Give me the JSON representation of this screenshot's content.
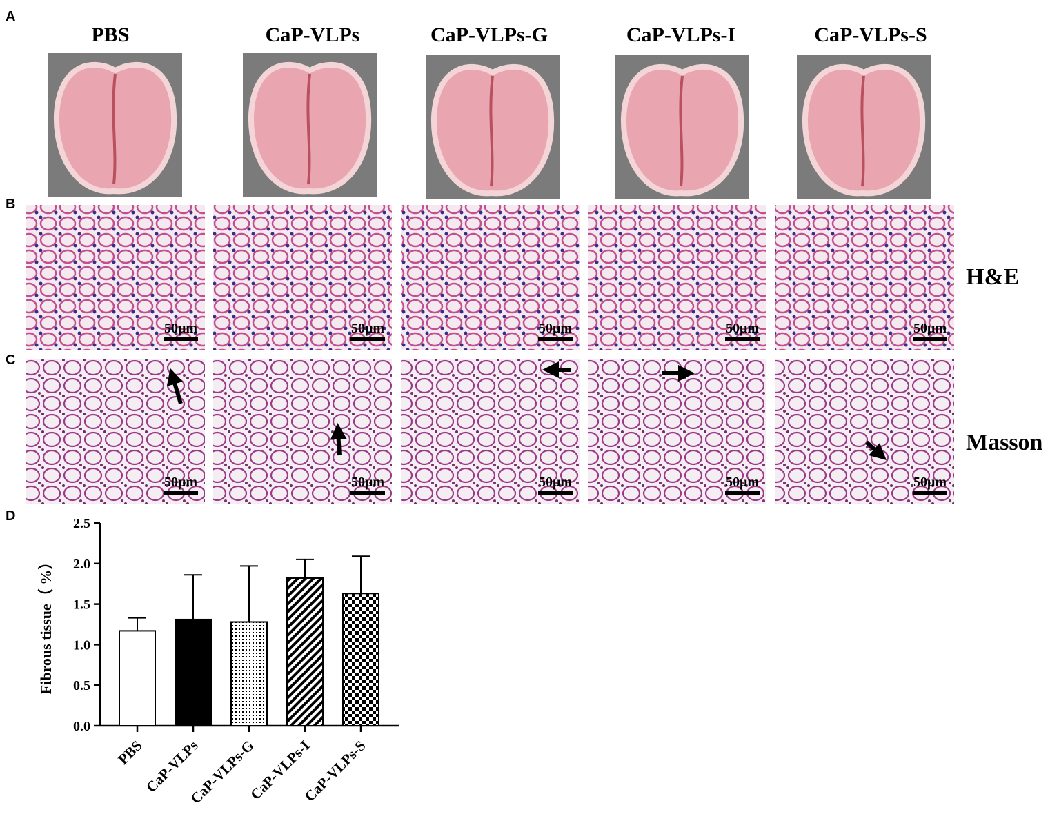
{
  "panels": {
    "A": {
      "label": "A",
      "groups": [
        "PBS",
        "CaP-VLPs",
        "CaP-VLPs-G",
        "CaP-VLPs-I",
        "CaP-VLPs-S"
      ]
    },
    "B": {
      "label": "B",
      "stain": "H&E",
      "scale_labels": [
        "50μm",
        "50μm",
        "50μm",
        "50μm",
        "50μm"
      ]
    },
    "C": {
      "label": "C",
      "stain": "Masson",
      "scale_labels": [
        "50μm",
        "50μm",
        "50μm",
        "50μm",
        "50μm"
      ]
    },
    "D": {
      "label": "D"
    }
  },
  "chart_data": {
    "type": "bar",
    "ylabel": "Fibrous tissue（  %）",
    "categories": [
      "PBS",
      "CaP-VLPs",
      "CaP-VLPs-G",
      "CaP-VLPs-I",
      "CaP-VLPs-S"
    ],
    "values": [
      1.17,
      1.31,
      1.28,
      1.82,
      1.63
    ],
    "errors": [
      0.16,
      0.55,
      0.69,
      0.23,
      0.46
    ],
    "fills": [
      "none",
      "solid",
      "dots",
      "hatch",
      "checker"
    ],
    "color": "#000000",
    "ylim": [
      0,
      2.5
    ],
    "yticks": [
      {
        "value": 0,
        "label": "0.0"
      },
      {
        "value": 0.5,
        "label": "0.5"
      },
      {
        "value": 1,
        "label": "1.0"
      },
      {
        "value": 1.5,
        "label": "1.5"
      },
      {
        "value": 2,
        "label": "2.0"
      },
      {
        "value": 2.5,
        "label": "2.5"
      }
    ]
  }
}
